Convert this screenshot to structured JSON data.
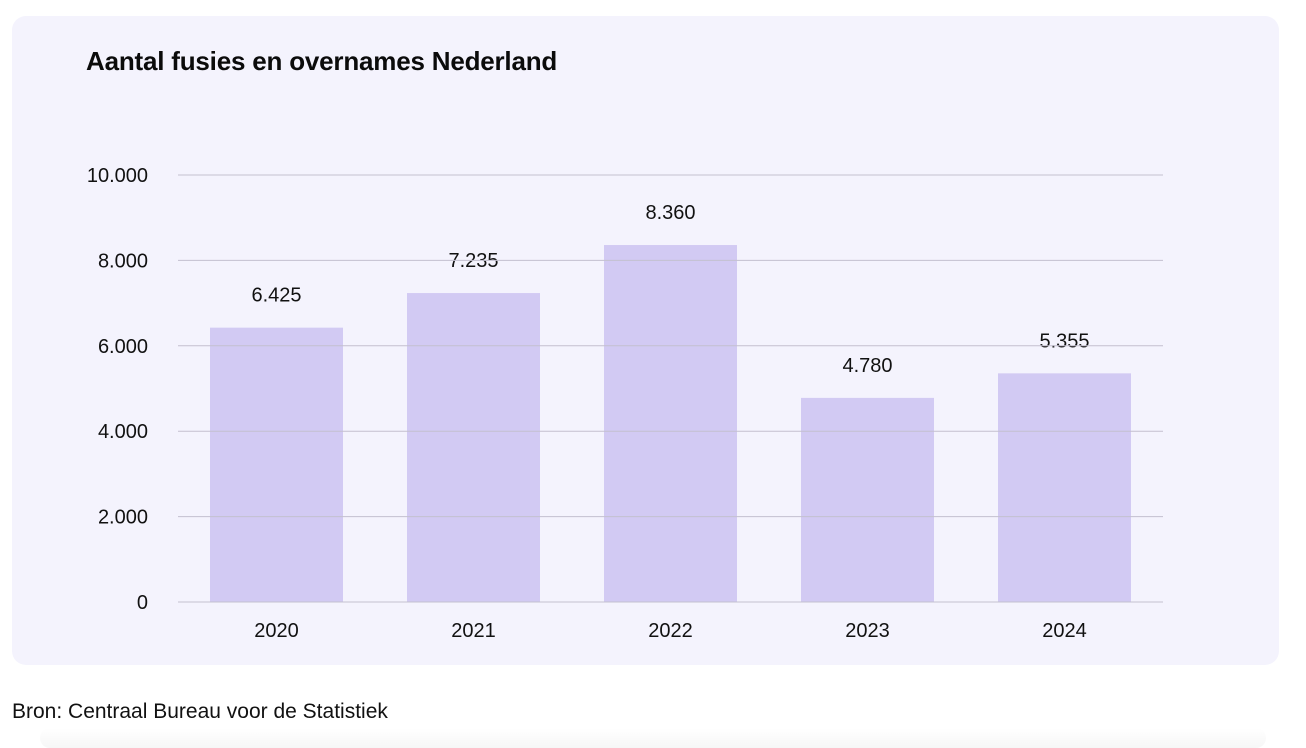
{
  "chart_data": {
    "type": "bar",
    "title": "Aantal fusies en overnames Nederland",
    "categories": [
      "2020",
      "2021",
      "2022",
      "2023",
      "2024"
    ],
    "values": [
      6425,
      7235,
      8360,
      4780,
      5355
    ],
    "value_labels": [
      "6.425",
      "7.235",
      "8.360",
      "4.780",
      "5.355"
    ],
    "yticks": [
      0,
      2000,
      4000,
      6000,
      8000,
      10000
    ],
    "ytick_labels": [
      "0",
      "2.000",
      "4.000",
      "6.000",
      "8.000",
      "10.000"
    ],
    "ylim": [
      0,
      10000
    ],
    "grid": true,
    "bar_color": "#d2caf3"
  },
  "source": "Bron: Centraal Bureau voor de Statistiek",
  "colors": {
    "card_background": "#f4f3fd",
    "gridline": "#c3c0cf"
  }
}
